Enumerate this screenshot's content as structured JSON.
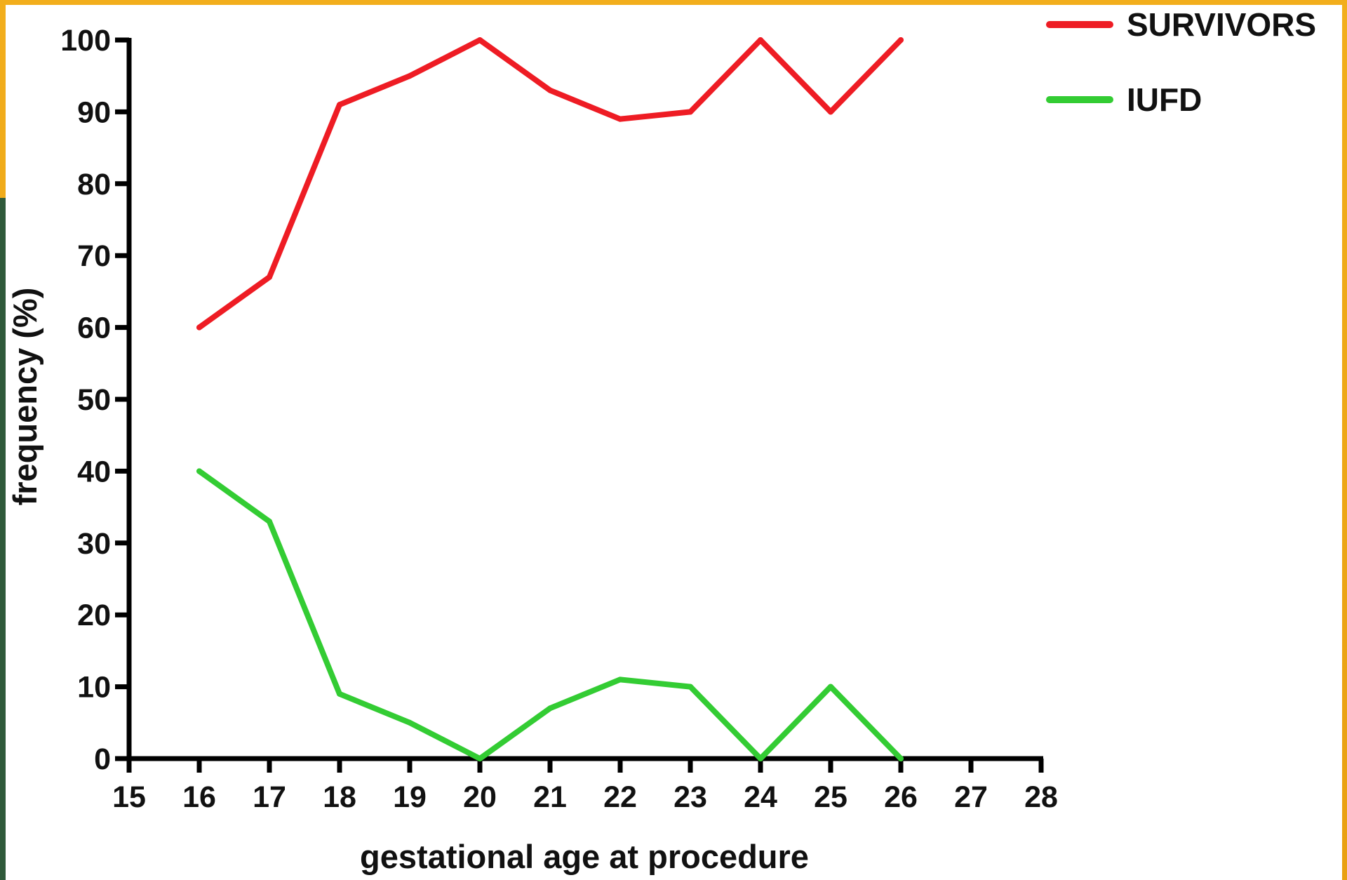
{
  "chart_data": {
    "type": "line",
    "xlabel": "gestational age at procedure",
    "ylabel": "frequency (%)",
    "xlim": [
      15,
      28
    ],
    "ylim": [
      0,
      100
    ],
    "x_ticks": [
      15,
      16,
      17,
      18,
      19,
      20,
      21,
      22,
      23,
      24,
      25,
      26,
      27,
      28
    ],
    "y_ticks": [
      0,
      10,
      20,
      30,
      40,
      50,
      60,
      70,
      80,
      90,
      100
    ],
    "grid": false,
    "legend_position": "top-right",
    "series": [
      {
        "name": "SURVIVORS",
        "color": "#ee1c24",
        "x": [
          16,
          17,
          18,
          19,
          20,
          21,
          22,
          23,
          24,
          25,
          26
        ],
        "y": [
          60,
          67,
          91,
          95,
          100,
          93,
          89,
          90,
          100,
          90,
          100
        ]
      },
      {
        "name": "IUFD",
        "color": "#33cc33",
        "x": [
          16,
          17,
          18,
          19,
          20,
          21,
          22,
          23,
          24,
          25,
          26
        ],
        "y": [
          40,
          33,
          9,
          5,
          0,
          7,
          11,
          10,
          0,
          10,
          0
        ]
      }
    ]
  }
}
